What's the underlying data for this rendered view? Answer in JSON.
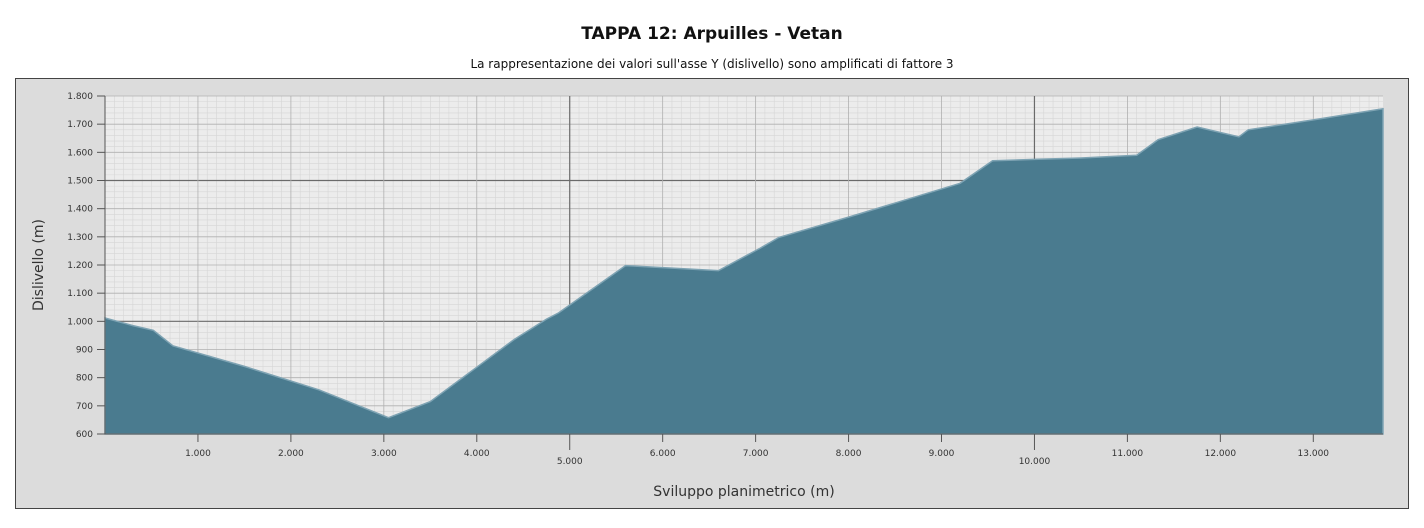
{
  "header": {
    "title": "TAPPA 12: Arpuilles - Vetan",
    "subtitle": "La rappresentazione dei valori sull'asse Y (dislivello) sono amplificati di fattore 3"
  },
  "chart_data": {
    "type": "area",
    "xlabel": "Sviluppo planimetrico (m)",
    "ylabel": "Dislivello (m)",
    "xlim": [
      0,
      13750
    ],
    "ylim": [
      600,
      1800
    ],
    "y_ticks": [
      {
        "value": 600,
        "label": "600"
      },
      {
        "value": 700,
        "label": "700"
      },
      {
        "value": 800,
        "label": "800"
      },
      {
        "value": 900,
        "label": "900"
      },
      {
        "value": 1000,
        "label": "1.000"
      },
      {
        "value": 1100,
        "label": "1.100"
      },
      {
        "value": 1200,
        "label": "1.200"
      },
      {
        "value": 1300,
        "label": "1.300"
      },
      {
        "value": 1400,
        "label": "1.400"
      },
      {
        "value": 1500,
        "label": "1.500"
      },
      {
        "value": 1600,
        "label": "1.600"
      },
      {
        "value": 1700,
        "label": "1.700"
      },
      {
        "value": 1800,
        "label": "1.800"
      }
    ],
    "x_ticks": [
      {
        "value": 1000,
        "label": "1.000",
        "major": false
      },
      {
        "value": 2000,
        "label": "2.000",
        "major": false
      },
      {
        "value": 3000,
        "label": "3.000",
        "major": false
      },
      {
        "value": 4000,
        "label": "4.000",
        "major": false
      },
      {
        "value": 5000,
        "label": "5.000",
        "major": true
      },
      {
        "value": 6000,
        "label": "6.000",
        "major": false
      },
      {
        "value": 7000,
        "label": "7.000",
        "major": false
      },
      {
        "value": 8000,
        "label": "8.000",
        "major": false
      },
      {
        "value": 9000,
        "label": "9.000",
        "major": false
      },
      {
        "value": 10000,
        "label": "10.000",
        "major": true
      },
      {
        "value": 11000,
        "label": "11.000",
        "major": false
      },
      {
        "value": 12000,
        "label": "12.000",
        "major": false
      },
      {
        "value": 13000,
        "label": "13.000",
        "major": false
      }
    ],
    "major_y_lines": [
      1000,
      1500
    ],
    "grid": true,
    "colors": {
      "fill": "#4a7b8f",
      "stroke": "#7ea3b3",
      "plot_bg": "#ececec",
      "frame_bg": "#dcdcdc"
    },
    "x": [
      0,
      300,
      520,
      730,
      1500,
      2300,
      3050,
      3500,
      4000,
      4400,
      4750,
      4880,
      5600,
      6600,
      7050,
      7250,
      8000,
      9200,
      9550,
      10000,
      10500,
      11100,
      11330,
      11750,
      12200,
      12300,
      13000,
      13750
    ],
    "y": [
      1012,
      985,
      968,
      913,
      840,
      757,
      658,
      715,
      837,
      935,
      1008,
      1030,
      1198,
      1180,
      1260,
      1298,
      1370,
      1490,
      1570,
      1575,
      1580,
      1590,
      1645,
      1690,
      1655,
      1680,
      1715,
      1755
    ]
  }
}
